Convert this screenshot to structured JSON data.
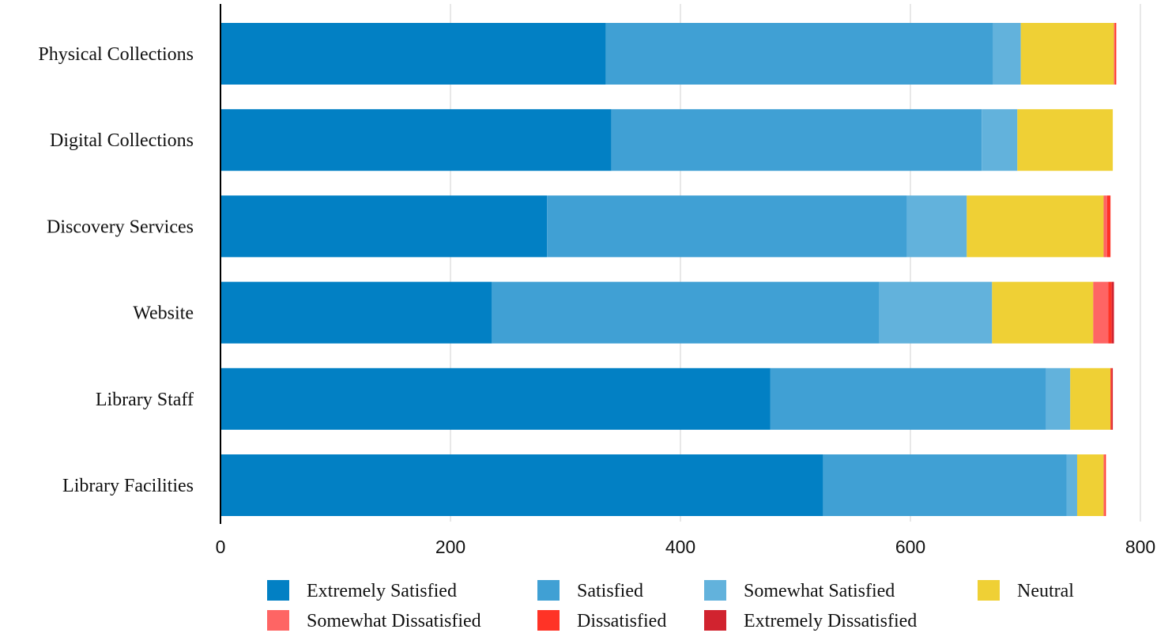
{
  "chart_data": {
    "type": "bar",
    "orientation": "horizontal",
    "stacked": true,
    "categories": [
      "Physical Collections",
      "Digital Collections",
      "Discovery Services",
      "Website",
      "Library Staff",
      "Library Facilities"
    ],
    "series": [
      {
        "name": "Extremely Satisfied",
        "color": "#0280c4",
        "values": [
          335,
          340,
          284,
          236,
          478,
          524
        ]
      },
      {
        "name": "Satisfied",
        "color": "#40a0d4",
        "values": [
          337,
          322,
          313,
          337,
          240,
          212
        ]
      },
      {
        "name": "Somewhat Satisfied",
        "color": "#62b2dc",
        "values": [
          24,
          31,
          52,
          98,
          21,
          9
        ]
      },
      {
        "name": "Neutral",
        "color": "#efd035",
        "values": [
          81,
          83,
          119,
          88,
          35,
          23
        ]
      },
      {
        "name": "Somewhat Dissatisfied",
        "color": "#fe6564",
        "values": [
          1,
          0,
          3,
          13,
          0,
          1
        ]
      },
      {
        "name": "Dissatisfied",
        "color": "#ff3326",
        "values": [
          1,
          0,
          3,
          3,
          1,
          1
        ]
      },
      {
        "name": "Extremely Dissatisfied",
        "color": "#d1232f",
        "values": [
          0,
          0,
          0,
          2,
          1,
          0
        ]
      }
    ],
    "xlim": [
      0,
      800
    ],
    "x_ticks": [
      "0",
      "200",
      "400",
      "600",
      "800"
    ],
    "grid": true,
    "legend_position": "bottom",
    "title": "",
    "xlabel": "",
    "ylabel": ""
  }
}
